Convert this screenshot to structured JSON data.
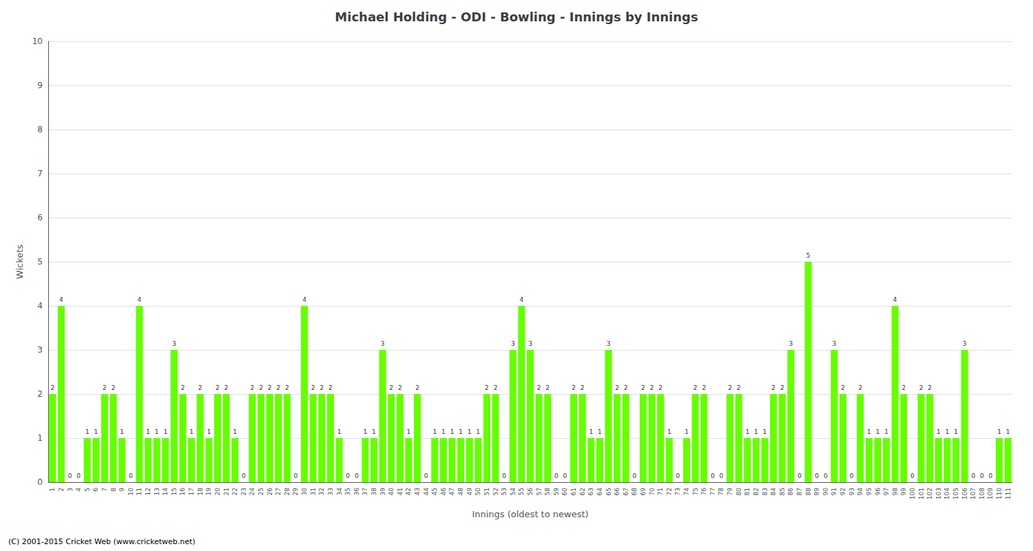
{
  "chart_data": {
    "type": "bar",
    "title": "Michael Holding - ODI - Bowling - Innings by Innings",
    "xlabel": "Innings (oldest to newest)",
    "ylabel": "Wickets",
    "annotations": [
      "(C) 2001-2015 Cricket Web (www.cricketweb.net)"
    ],
    "categories": [
      "1",
      "2",
      "3",
      "4",
      "5",
      "6",
      "7",
      "8",
      "9",
      "10",
      "11",
      "12",
      "13",
      "14",
      "15",
      "16",
      "17",
      "18",
      "19",
      "20",
      "21",
      "22",
      "23",
      "24",
      "25",
      "26",
      "27",
      "28",
      "29",
      "30",
      "31",
      "32",
      "33",
      "34",
      "35",
      "36",
      "37",
      "38",
      "39",
      "40",
      "41",
      "42",
      "43",
      "44",
      "45",
      "46",
      "47",
      "48",
      "49",
      "50",
      "51",
      "52",
      "53",
      "54",
      "55",
      "56",
      "57",
      "58",
      "59",
      "60",
      "61",
      "62",
      "63",
      "64",
      "65",
      "66",
      "67",
      "68",
      "69",
      "70",
      "71",
      "72",
      "73",
      "74",
      "75",
      "76",
      "77",
      "78",
      "79",
      "80",
      "81",
      "82",
      "83",
      "84",
      "85",
      "86",
      "87",
      "88",
      "89",
      "90",
      "91",
      "92",
      "93",
      "94",
      "95",
      "96",
      "97",
      "98",
      "99",
      "100",
      "101",
      "102",
      "103",
      "104",
      "105",
      "106",
      "107",
      "108",
      "109",
      "110",
      "111"
    ],
    "values": [
      2,
      4,
      0,
      0,
      1,
      1,
      2,
      2,
      1,
      0,
      4,
      1,
      1,
      1,
      3,
      2,
      1,
      2,
      1,
      2,
      2,
      1,
      0,
      2,
      2,
      2,
      2,
      2,
      0,
      4,
      2,
      2,
      2,
      1,
      0,
      0,
      1,
      1,
      3,
      2,
      2,
      1,
      2,
      0,
      1,
      1,
      1,
      1,
      1,
      1,
      2,
      2,
      0,
      3,
      4,
      3,
      2,
      2,
      0,
      0,
      2,
      2,
      1,
      1,
      3,
      2,
      2,
      0,
      2,
      2,
      2,
      1,
      0,
      1,
      2,
      2,
      0,
      0,
      2,
      2,
      1,
      1,
      1,
      2,
      2,
      3,
      0,
      5,
      0,
      0,
      3,
      2,
      0,
      2,
      1,
      1,
      1,
      4,
      2,
      0,
      2,
      2,
      1,
      1,
      1,
      3,
      0,
      0,
      0,
      1,
      1
    ],
    "color": "#66FF00",
    "ylim": [
      0,
      10
    ],
    "yticks": [
      0,
      1,
      2,
      3,
      4,
      5,
      6,
      7,
      8,
      9,
      10
    ],
    "grid": true,
    "data_labels": true
  }
}
